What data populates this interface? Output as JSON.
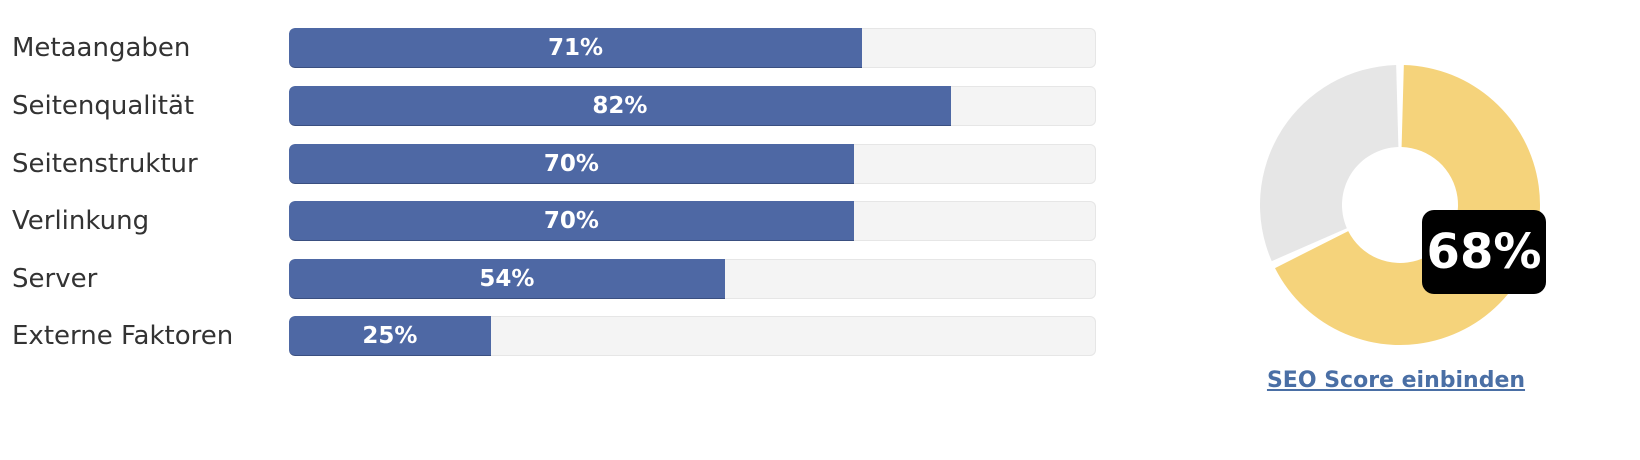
{
  "metrics": [
    {
      "label": "Metaangaben",
      "value": 71,
      "value_text": "71%"
    },
    {
      "label": "Seitenqualität",
      "value": 82,
      "value_text": "82%"
    },
    {
      "label": "Seitenstruktur",
      "value": 70,
      "value_text": "70%"
    },
    {
      "label": "Verlinkung",
      "value": 70,
      "value_text": "70%"
    },
    {
      "label": "Server",
      "value": 54,
      "value_text": "54%"
    },
    {
      "label": "Externe Faktoren",
      "value": 25,
      "value_text": "25%"
    }
  ],
  "score": {
    "value": 68,
    "value_text": "68%",
    "link_label": "SEO Score einbinden"
  },
  "colors": {
    "bar_fill": "#4e68a4",
    "bar_track": "#f4f4f4",
    "donut_score": "#f5d37b",
    "donut_rest": "#e6e6e6",
    "badge_bg": "#000000",
    "link": "#4a6fa5"
  }
}
